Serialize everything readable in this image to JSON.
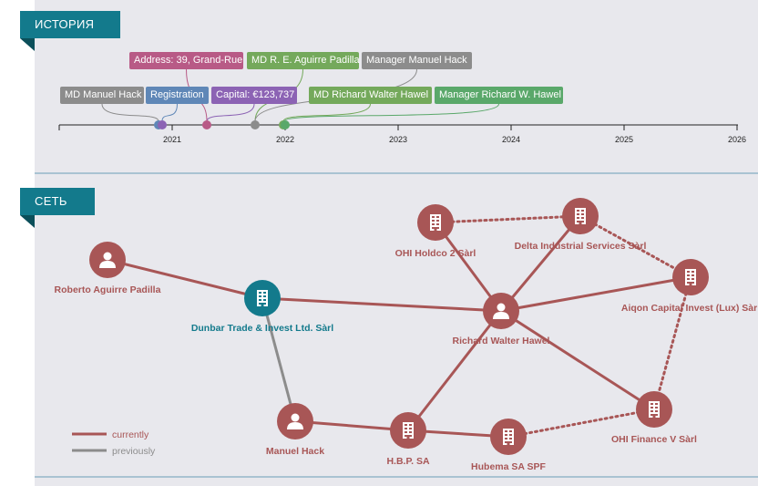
{
  "sections": {
    "history": {
      "title": "ИСТОРИЯ"
    },
    "network": {
      "title": "СЕТЬ"
    }
  },
  "colors": {
    "accent": "#137a8c",
    "current": "#a85656",
    "previous": "#8c8c8c",
    "grey": "#8c8c8c",
    "blue": "#5f87b7",
    "purple": "#8c63b4",
    "pink": "#b85a86",
    "green": "#74a95b",
    "green2": "#5aa86a"
  },
  "timeline": {
    "years": [
      "2021",
      "2022",
      "2023",
      "2024",
      "2025",
      "2026"
    ],
    "events": [
      {
        "label": "MD Manuel Hack",
        "color": "grey"
      },
      {
        "label": "Registration",
        "color": "blue"
      },
      {
        "label": "Capital: €123,737",
        "color": "purple"
      },
      {
        "label": "Address: 39, Grand-Rue",
        "color": "pink"
      },
      {
        "label": "MD R. E. Aguirre Padilla",
        "color": "green"
      },
      {
        "label": "Manager Manuel Hack",
        "color": "grey"
      },
      {
        "label": "MD Richard Walter Hawel",
        "color": "green"
      },
      {
        "label": "Manager Richard W. Hawel",
        "color": "green2"
      }
    ]
  },
  "network": {
    "nodes": [
      {
        "id": "roberto",
        "label": "Roberto Aguirre Padilla",
        "type": "person",
        "icon": "person-icon",
        "status": "current"
      },
      {
        "id": "dunbar",
        "label": "Dunbar Trade & Invest Ltd. Sàrl",
        "type": "company",
        "icon": "building-icon",
        "status": "focus"
      },
      {
        "id": "manuel",
        "label": "Manuel Hack",
        "type": "person",
        "icon": "person-icon",
        "status": "current"
      },
      {
        "id": "hbp",
        "label": "H.B.P. SA",
        "type": "company",
        "icon": "building-icon",
        "status": "current"
      },
      {
        "id": "hubema",
        "label": "Hubema SA SPF",
        "type": "company",
        "icon": "building-icon",
        "status": "current"
      },
      {
        "id": "richard",
        "label": "Richard Walter Hawel",
        "type": "person",
        "icon": "person-icon",
        "status": "current"
      },
      {
        "id": "ohiholdco",
        "label": "OHI Holdco 2 Sàrl",
        "type": "company",
        "icon": "building-icon",
        "status": "current"
      },
      {
        "id": "delta",
        "label": "Delta Industrial Services Sàrl",
        "type": "company",
        "icon": "building-icon",
        "status": "current"
      },
      {
        "id": "aiqon",
        "label": "Aiqon Capital Invest (Lux) Sàrl",
        "type": "company",
        "icon": "building-icon",
        "status": "current"
      },
      {
        "id": "ohifinance",
        "label": "OHI Finance V Sàrl",
        "type": "company",
        "icon": "building-icon",
        "status": "current"
      }
    ],
    "edges": [
      {
        "from": "roberto",
        "to": "dunbar",
        "style": "current"
      },
      {
        "from": "dunbar",
        "to": "richard",
        "style": "current"
      },
      {
        "from": "dunbar",
        "to": "manuel",
        "style": "previous"
      },
      {
        "from": "manuel",
        "to": "hbp",
        "style": "current"
      },
      {
        "from": "hbp",
        "to": "hubema",
        "style": "current"
      },
      {
        "from": "hbp",
        "to": "richard",
        "style": "current"
      },
      {
        "from": "richard",
        "to": "ohiholdco",
        "style": "current"
      },
      {
        "from": "richard",
        "to": "delta",
        "style": "current"
      },
      {
        "from": "richard",
        "to": "aiqon",
        "style": "current"
      },
      {
        "from": "richard",
        "to": "ohifinance",
        "style": "current"
      },
      {
        "from": "ohiholdco",
        "to": "delta",
        "style": "dotted"
      },
      {
        "from": "delta",
        "to": "aiqon",
        "style": "dotted"
      },
      {
        "from": "aiqon",
        "to": "ohifinance",
        "style": "dotted"
      },
      {
        "from": "hubema",
        "to": "ohifinance",
        "style": "dotted"
      }
    ],
    "legend": [
      {
        "label": "currently",
        "style": "current"
      },
      {
        "label": "previously",
        "style": "previous"
      }
    ]
  }
}
